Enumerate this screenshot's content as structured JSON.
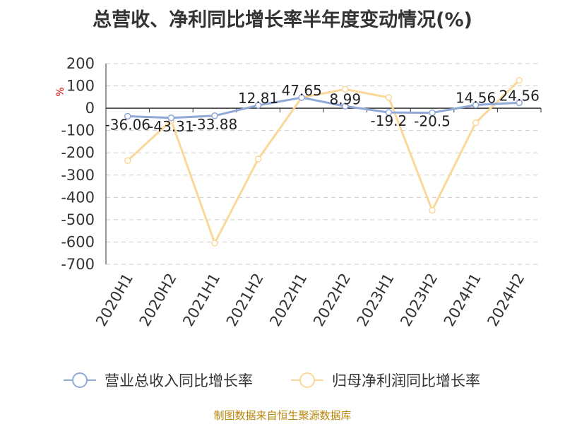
{
  "title": "总营收、净利同比增长率半年度变动情况(%)",
  "source": "制图数据来自恒生聚源数据库",
  "chart_data": {
    "type": "line",
    "title": "总营收、净利同比增长率半年度变动情况(%)",
    "ylabel": "%",
    "xlabel": "",
    "ylim": [
      -700,
      200
    ],
    "yticks": [
      200,
      100,
      0,
      -100,
      -200,
      -300,
      -400,
      -500,
      -600,
      -700
    ],
    "grid": true,
    "legend": "bottom",
    "categories": [
      "2020H1",
      "2020H2",
      "2021H1",
      "2021H2",
      "2022H1",
      "2022H2",
      "2023H1",
      "2023H2",
      "2024H1",
      "2024H2"
    ],
    "series": [
      {
        "name": "营业总收入同比增长率",
        "color": "#8fa8d8",
        "values": [
          -36.06,
          -43.31,
          -33.88,
          12.81,
          47.65,
          8.99,
          -19.2,
          -20.5,
          14.56,
          24.56
        ],
        "labels": [
          "-36.06",
          "-43.31",
          "-33.88",
          "12.81",
          "47.65",
          "8.99",
          "-19.2",
          "-20.5",
          "14.56",
          "24.56"
        ]
      },
      {
        "name": "归母净利润同比增长率",
        "color": "#fbd89a",
        "values": [
          -235,
          -55,
          -605,
          -228,
          48,
          85,
          48,
          -458,
          -65,
          125
        ]
      }
    ]
  }
}
